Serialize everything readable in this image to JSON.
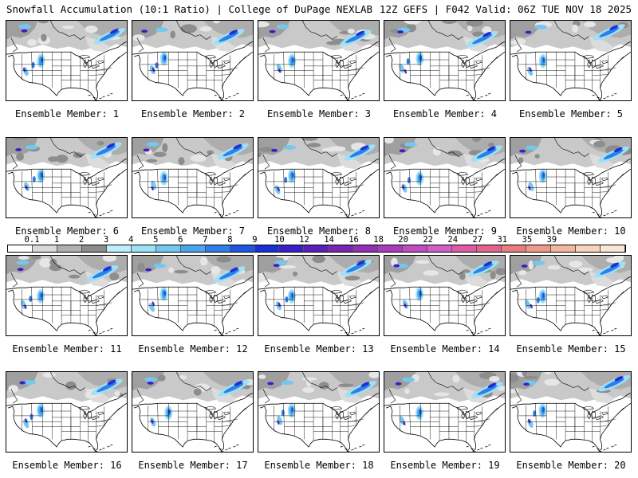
{
  "header": {
    "title_left": "Snowfall Accumulation (10:1 Ratio) | College of DuPage NEXLAB",
    "title_right": "12Z GEFS | F042 Valid: 06Z TUE NOV 18 2025"
  },
  "panels": [
    {
      "label": "Ensemble Member: 1"
    },
    {
      "label": "Ensemble Member: 2"
    },
    {
      "label": "Ensemble Member: 3"
    },
    {
      "label": "Ensemble Member: 4"
    },
    {
      "label": "Ensemble Member: 5"
    },
    {
      "label": "Ensemble Member: 6"
    },
    {
      "label": "Ensemble Member: 7"
    },
    {
      "label": "Ensemble Member: 8"
    },
    {
      "label": "Ensemble Member: 9"
    },
    {
      "label": "Ensemble Member: 10"
    },
    {
      "label": "Ensemble Member: 11"
    },
    {
      "label": "Ensemble Member: 12"
    },
    {
      "label": "Ensemble Member: 13"
    },
    {
      "label": "Ensemble Member: 14"
    },
    {
      "label": "Ensemble Member: 15"
    },
    {
      "label": "Ensemble Member: 16"
    },
    {
      "label": "Ensemble Member: 17"
    },
    {
      "label": "Ensemble Member: 18"
    },
    {
      "label": "Ensemble Member: 19"
    },
    {
      "label": "Ensemble Member: 20"
    }
  ],
  "colorbar": {
    "labels": [
      "0.1",
      "1",
      "2",
      "3",
      "4",
      "5",
      "6",
      "7",
      "8",
      "9",
      "10",
      "12",
      "14",
      "16",
      "18",
      "20",
      "22",
      "24",
      "27",
      "31",
      "35",
      "39"
    ],
    "colors": [
      "#ffffff",
      "#d9d9d9",
      "#b0b0b0",
      "#8c8c8c",
      "#bfefff",
      "#9ee0f5",
      "#74c8f0",
      "#4aa6ec",
      "#2e7fe6",
      "#1f55e0",
      "#1a2fd6",
      "#3a1fc9",
      "#5a1fb9",
      "#7a25b0",
      "#9330b5",
      "#a93cba",
      "#bf4cc0",
      "#d25fc8",
      "#dc5aa8",
      "#e2648a",
      "#e87d7d",
      "#ee9a8a",
      "#f3b7a0",
      "#f8d3bb",
      "#fbe6d4"
    ]
  }
}
